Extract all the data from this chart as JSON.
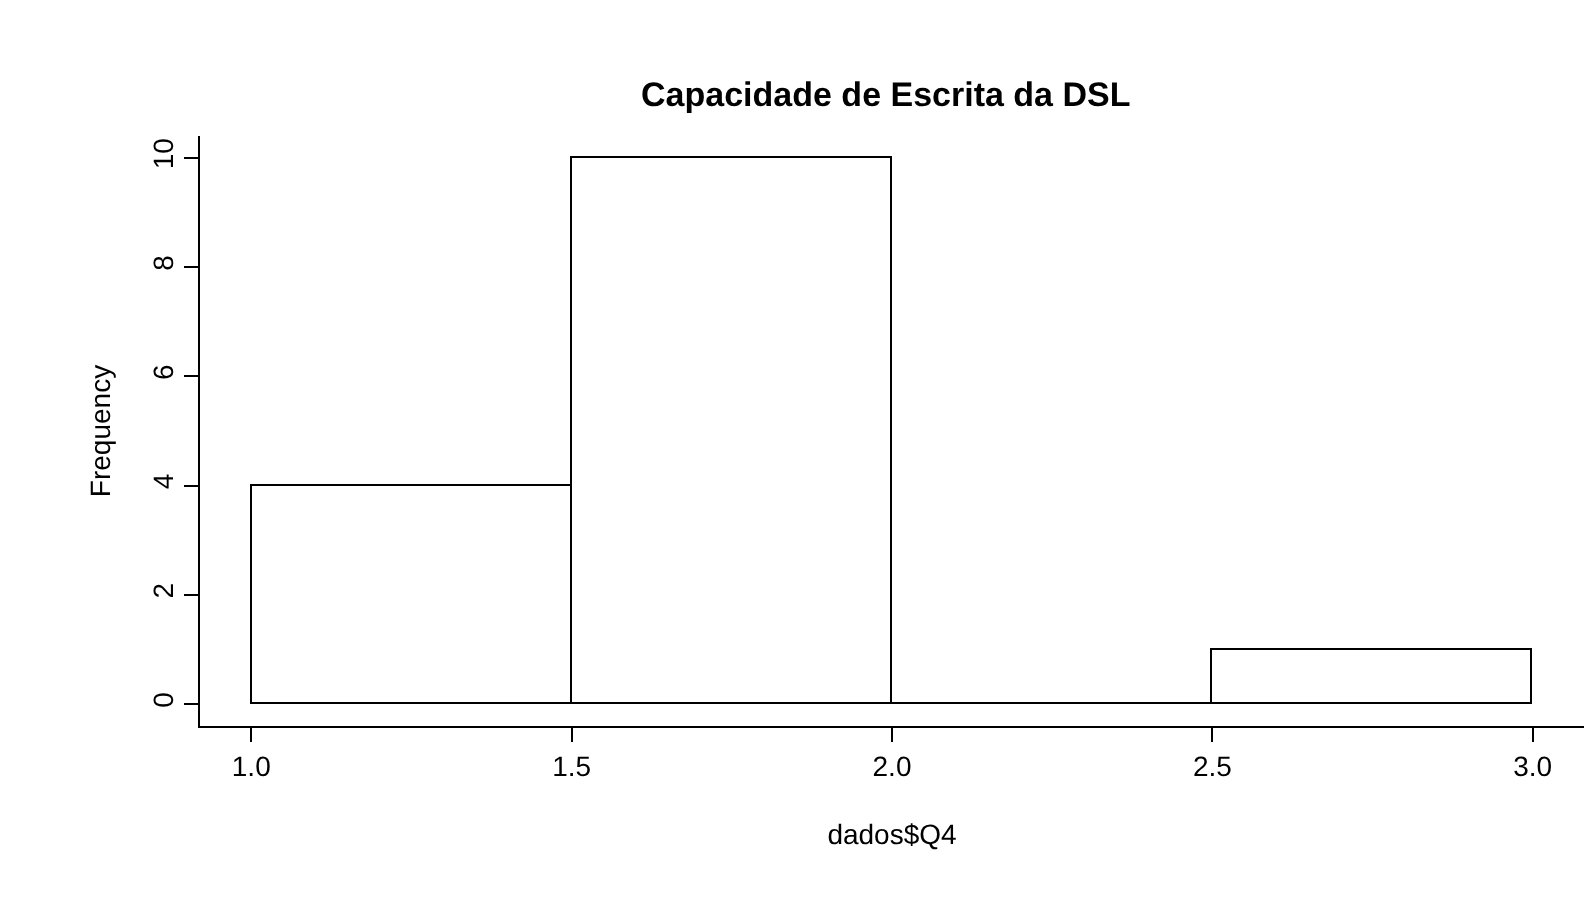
{
  "chart_data": {
    "type": "histogram",
    "title": "Capacidade de Escrita da DSL",
    "xlabel": "dados$Q4",
    "ylabel": "Frequency",
    "bins": [
      1.0,
      1.5,
      2.0,
      2.5,
      3.0
    ],
    "values": [
      4,
      10,
      0,
      1
    ],
    "colors": [
      "#ffffff",
      "#ffffff",
      "#000000",
      "#ffffff"
    ],
    "xlim": [
      0.92,
      3.08
    ],
    "xticks": [
      {
        "value": 1.0,
        "label": "1.0"
      },
      {
        "value": 1.5,
        "label": "1.5"
      },
      {
        "value": 2.0,
        "label": "2.0"
      },
      {
        "value": 2.5,
        "label": "2.5"
      },
      {
        "value": 3.0,
        "label": "3.0"
      }
    ],
    "ylim": [
      -0.4,
      10.4
    ],
    "yticks": [
      0,
      2,
      4,
      6,
      8,
      10
    ]
  }
}
